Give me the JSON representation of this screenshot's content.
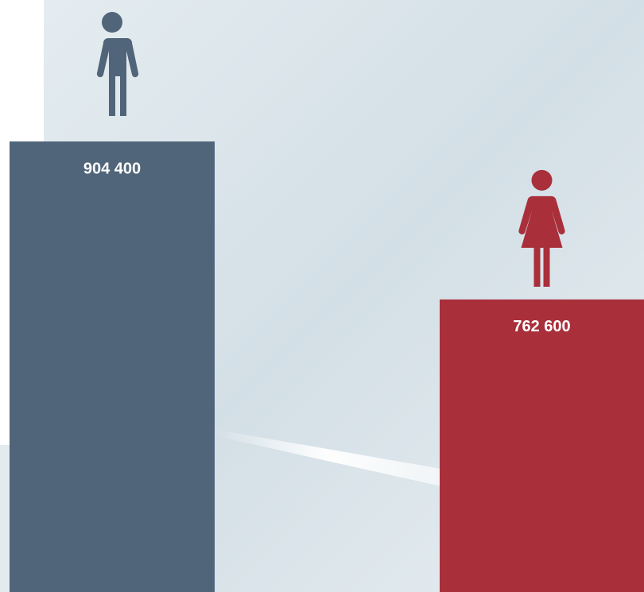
{
  "chart_data": {
    "type": "bar",
    "categories": [
      null,
      null
    ],
    "values": [
      904400,
      762600
    ],
    "value_labels": [
      "904 400",
      "762 600"
    ],
    "colors": [
      "#506579",
      "#a92f3a"
    ],
    "ylim": [
      500000,
      1000000
    ]
  }
}
